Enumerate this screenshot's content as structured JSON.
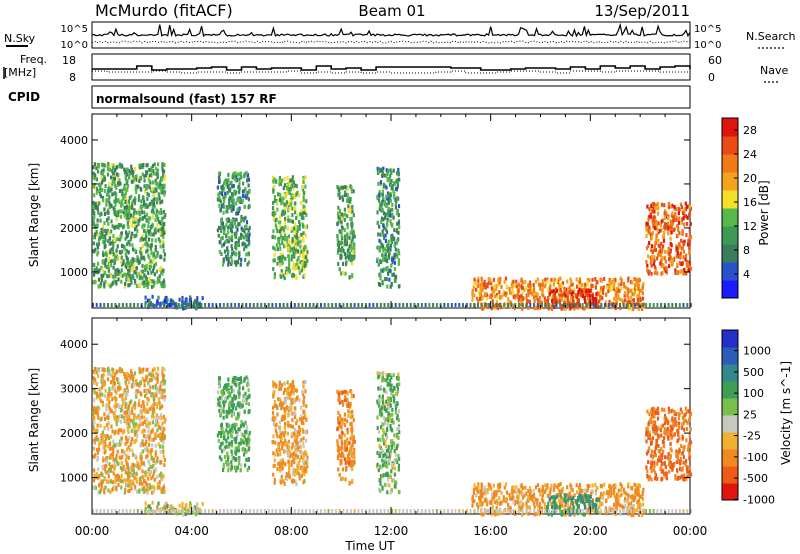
{
  "header": {
    "station": "McMurdo (fitACF)",
    "beam": "Beam 01",
    "date": "13/Sep/2011"
  },
  "sky_panel": {
    "left_label": "N.Sky",
    "right_label": "N.Search",
    "tick_top": "10^5",
    "tick_bottom": "10^0"
  },
  "freq_panel": {
    "left_label_line1": "Freq.",
    "left_label_line2": "[MHz]",
    "left_ticks": [
      "18",
      "8"
    ],
    "right_label": "Nave",
    "right_ticks": [
      "60",
      "0"
    ]
  },
  "cpid": {
    "label": "CPID",
    "value": "normalsound (fast) 157 RF"
  },
  "colors": {
    "power_scale": [
      "#1a1aff",
      "#2a52c8",
      "#3a7d5a",
      "#3c9a54",
      "#58b84a",
      "#f2e02a",
      "#f5a21e",
      "#f07a17",
      "#ea4a14",
      "#e0140f"
    ],
    "velocity_scale": [
      "#2030c8",
      "#2a5cb8",
      "#33888f",
      "#3c9f55",
      "#78c04a",
      "#c8c8c0",
      "#f0b030",
      "#f08a20",
      "#ee5a18",
      "#e0140f"
    ]
  },
  "chart_data": [
    {
      "type": "heatmap",
      "title": "Power",
      "xlabel": "Time UT",
      "ylabel": "Slant Range [km]",
      "x_ticks": [
        "00:00",
        "04:00",
        "08:00",
        "12:00",
        "16:00",
        "20:00",
        "00:00"
      ],
      "x_range_hours": [
        0,
        24
      ],
      "y_ticks": [
        1000,
        2000,
        3000,
        4000
      ],
      "y_range_km": [
        180,
        4590
      ],
      "colorbar": {
        "label": "Power [dB]",
        "ticks": [
          4,
          8,
          12,
          16,
          20,
          24,
          28
        ],
        "range": [
          0,
          30
        ]
      },
      "echo_regions": [
        {
          "t_start": 0.0,
          "t_end": 2.9,
          "r_start": 700,
          "r_end": 3500,
          "level": 11
        },
        {
          "t_start": 2.1,
          "t_end": 4.4,
          "r_start": 200,
          "r_end": 480,
          "level": 6
        },
        {
          "t_start": 5.0,
          "t_end": 6.3,
          "r_start": 1200,
          "r_end": 3300,
          "level": 10
        },
        {
          "t_start": 7.2,
          "t_end": 8.6,
          "r_start": 900,
          "r_end": 3200,
          "level": 13
        },
        {
          "t_start": 9.8,
          "t_end": 10.5,
          "r_start": 900,
          "r_end": 3000,
          "level": 11
        },
        {
          "t_start": 11.4,
          "t_end": 12.3,
          "r_start": 700,
          "r_end": 3400,
          "level": 10
        },
        {
          "t_start": 15.2,
          "t_end": 22.1,
          "r_start": 200,
          "r_end": 900,
          "level": 22
        },
        {
          "t_start": 18.2,
          "t_end": 20.3,
          "r_start": 200,
          "r_end": 650,
          "level": 28
        },
        {
          "t_start": 22.2,
          "t_end": 24.0,
          "r_start": 1000,
          "r_end": 2600,
          "level": 24
        }
      ]
    },
    {
      "type": "heatmap",
      "title": "Velocity",
      "xlabel": "Time UT",
      "ylabel": "Slant Range [km]",
      "x_ticks": [
        "00:00",
        "04:00",
        "08:00",
        "12:00",
        "16:00",
        "20:00",
        "00:00"
      ],
      "x_range_hours": [
        0,
        24
      ],
      "y_ticks": [
        1000,
        2000,
        3000,
        4000
      ],
      "y_range_km": [
        180,
        4590
      ],
      "colorbar": {
        "label": "Velocity [m s^-1]",
        "ticks": [
          "1000",
          "500",
          "100",
          "25",
          "-25",
          "-100",
          "-500",
          "-1000"
        ]
      },
      "echo_regions": [
        {
          "t_start": 0.0,
          "t_end": 2.9,
          "r_start": 700,
          "r_end": 3500,
          "velocity": -80
        },
        {
          "t_start": 2.1,
          "t_end": 4.4,
          "r_start": 200,
          "r_end": 480,
          "velocity": 0
        },
        {
          "t_start": 5.0,
          "t_end": 6.3,
          "r_start": 1200,
          "r_end": 3300,
          "velocity": 150
        },
        {
          "t_start": 7.2,
          "t_end": 8.6,
          "r_start": 900,
          "r_end": 3200,
          "velocity": -120
        },
        {
          "t_start": 9.8,
          "t_end": 10.5,
          "r_start": 900,
          "r_end": 3000,
          "velocity": -200
        },
        {
          "t_start": 11.4,
          "t_end": 12.3,
          "r_start": 700,
          "r_end": 3400,
          "velocity": 100
        },
        {
          "t_start": 15.2,
          "t_end": 22.1,
          "r_start": 200,
          "r_end": 900,
          "velocity": -150
        },
        {
          "t_start": 18.2,
          "t_end": 20.3,
          "r_start": 200,
          "r_end": 650,
          "velocity": 300
        },
        {
          "t_start": 22.2,
          "t_end": 24.0,
          "r_start": 1000,
          "r_end": 2600,
          "velocity": -300
        }
      ]
    }
  ]
}
